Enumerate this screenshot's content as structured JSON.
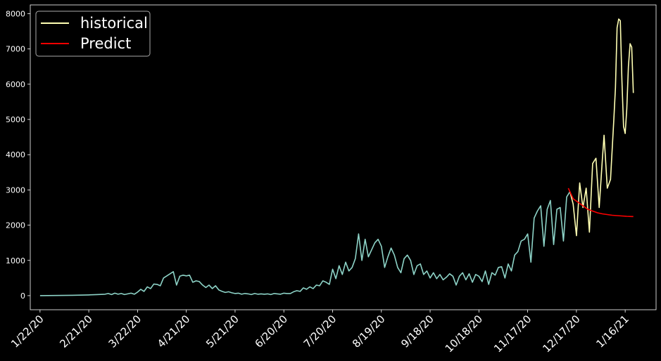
{
  "chart_data": {
    "type": "line",
    "title": "",
    "xlabel": "",
    "ylabel": "",
    "x_tick_labels": [
      "1/22/20",
      "2/21/20",
      "3/22/20",
      "4/21/20",
      "5/21/20",
      "6/20/20",
      "7/20/20",
      "8/19/20",
      "9/18/20",
      "10/18/20",
      "11/17/20",
      "12/17/20",
      "1/16/21"
    ],
    "x_tick_days": [
      0,
      30,
      60,
      90,
      120,
      150,
      180,
      210,
      240,
      270,
      300,
      330,
      360
    ],
    "xlim": [
      -6,
      379
    ],
    "ylim": [
      -400,
      8250
    ],
    "y_ticks": [
      0,
      1000,
      2000,
      3000,
      4000,
      5000,
      6000,
      7000,
      8000
    ],
    "legend": {
      "position": "top-left"
    },
    "colors": {
      "background": "#000000",
      "axes": "#ffffff",
      "early_history": "#8dd3c7",
      "historical": "#ffffb3",
      "predict": "#ff0000"
    },
    "series": [
      {
        "name": "",
        "color": "#8dd3c7",
        "points": [
          [
            0,
            0
          ],
          [
            5,
            2
          ],
          [
            10,
            5
          ],
          [
            15,
            6
          ],
          [
            20,
            10
          ],
          [
            25,
            15
          ],
          [
            30,
            20
          ],
          [
            35,
            30
          ],
          [
            40,
            40
          ],
          [
            42,
            60
          ],
          [
            44,
            30
          ],
          [
            46,
            70
          ],
          [
            48,
            40
          ],
          [
            50,
            60
          ],
          [
            52,
            30
          ],
          [
            54,
            50
          ],
          [
            56,
            70
          ],
          [
            58,
            40
          ],
          [
            60,
            100
          ],
          [
            62,
            180
          ],
          [
            64,
            120
          ],
          [
            66,
            250
          ],
          [
            68,
            200
          ],
          [
            70,
            330
          ],
          [
            72,
            320
          ],
          [
            74,
            280
          ],
          [
            76,
            500
          ],
          [
            78,
            560
          ],
          [
            80,
            620
          ],
          [
            82,
            680
          ],
          [
            84,
            300
          ],
          [
            86,
            550
          ],
          [
            88,
            580
          ],
          [
            90,
            560
          ],
          [
            92,
            580
          ],
          [
            94,
            380
          ],
          [
            96,
            420
          ],
          [
            98,
            400
          ],
          [
            100,
            300
          ],
          [
            102,
            230
          ],
          [
            104,
            300
          ],
          [
            106,
            200
          ],
          [
            108,
            280
          ],
          [
            110,
            160
          ],
          [
            112,
            120
          ],
          [
            114,
            90
          ],
          [
            116,
            110
          ],
          [
            118,
            80
          ],
          [
            120,
            60
          ],
          [
            122,
            70
          ],
          [
            124,
            40
          ],
          [
            126,
            60
          ],
          [
            128,
            50
          ],
          [
            130,
            30
          ],
          [
            132,
            60
          ],
          [
            134,
            40
          ],
          [
            136,
            50
          ],
          [
            138,
            40
          ],
          [
            140,
            50
          ],
          [
            142,
            30
          ],
          [
            144,
            60
          ],
          [
            146,
            50
          ],
          [
            148,
            40
          ],
          [
            150,
            70
          ],
          [
            152,
            60
          ],
          [
            154,
            60
          ],
          [
            156,
            110
          ],
          [
            158,
            140
          ],
          [
            160,
            120
          ],
          [
            162,
            220
          ],
          [
            164,
            180
          ],
          [
            166,
            250
          ],
          [
            168,
            200
          ],
          [
            170,
            300
          ],
          [
            172,
            280
          ],
          [
            174,
            420
          ],
          [
            176,
            380
          ],
          [
            178,
            320
          ],
          [
            180,
            750
          ],
          [
            182,
            480
          ],
          [
            184,
            850
          ],
          [
            186,
            600
          ],
          [
            188,
            950
          ],
          [
            190,
            700
          ],
          [
            192,
            800
          ],
          [
            194,
            1050
          ],
          [
            196,
            1750
          ],
          [
            198,
            1000
          ],
          [
            200,
            1600
          ],
          [
            202,
            1100
          ],
          [
            204,
            1300
          ],
          [
            206,
            1500
          ],
          [
            208,
            1600
          ],
          [
            210,
            1400
          ],
          [
            212,
            800
          ],
          [
            214,
            1100
          ],
          [
            216,
            1350
          ],
          [
            218,
            1150
          ],
          [
            220,
            800
          ],
          [
            222,
            650
          ],
          [
            224,
            1050
          ],
          [
            226,
            1150
          ],
          [
            228,
            1000
          ],
          [
            230,
            600
          ],
          [
            232,
            850
          ],
          [
            234,
            900
          ],
          [
            236,
            600
          ],
          [
            238,
            700
          ],
          [
            240,
            500
          ],
          [
            242,
            650
          ],
          [
            244,
            480
          ],
          [
            246,
            600
          ],
          [
            248,
            450
          ],
          [
            250,
            520
          ],
          [
            252,
            620
          ],
          [
            254,
            550
          ],
          [
            256,
            300
          ],
          [
            258,
            550
          ],
          [
            260,
            650
          ],
          [
            262,
            450
          ],
          [
            264,
            620
          ],
          [
            266,
            380
          ],
          [
            268,
            600
          ],
          [
            270,
            550
          ],
          [
            272,
            400
          ],
          [
            274,
            700
          ],
          [
            276,
            320
          ],
          [
            278,
            650
          ],
          [
            280,
            580
          ],
          [
            282,
            800
          ],
          [
            284,
            820
          ],
          [
            286,
            500
          ],
          [
            288,
            900
          ],
          [
            290,
            700
          ],
          [
            292,
            1150
          ],
          [
            294,
            1250
          ],
          [
            296,
            1550
          ],
          [
            298,
            1600
          ],
          [
            300,
            1750
          ],
          [
            302,
            950
          ],
          [
            304,
            2200
          ],
          [
            306,
            2400
          ],
          [
            308,
            2550
          ],
          [
            310,
            1400
          ],
          [
            312,
            2450
          ],
          [
            314,
            2700
          ],
          [
            316,
            1450
          ],
          [
            318,
            2450
          ],
          [
            320,
            2500
          ],
          [
            322,
            1550
          ],
          [
            324,
            2800
          ],
          [
            326,
            2950
          ]
        ]
      },
      {
        "name": "historical",
        "color": "#ffffb3",
        "points": [
          [
            326,
            2950
          ],
          [
            328,
            2600
          ],
          [
            330,
            1700
          ],
          [
            332,
            3200
          ],
          [
            334,
            2500
          ],
          [
            336,
            3050
          ],
          [
            338,
            1800
          ],
          [
            340,
            3750
          ],
          [
            342,
            3900
          ],
          [
            344,
            2500
          ],
          [
            346,
            3900
          ],
          [
            347,
            4550
          ],
          [
            349,
            3050
          ],
          [
            351,
            3300
          ],
          [
            353,
            5000
          ],
          [
            354,
            5900
          ],
          [
            355,
            7600
          ],
          [
            356,
            7850
          ],
          [
            357,
            7800
          ],
          [
            358,
            6100
          ],
          [
            359,
            4800
          ],
          [
            360,
            4600
          ],
          [
            361,
            5300
          ],
          [
            362,
            6500
          ],
          [
            363,
            7150
          ],
          [
            364,
            7050
          ],
          [
            365,
            5750
          ]
        ]
      },
      {
        "name": "Predict",
        "color": "#ff0000",
        "points": [
          [
            325,
            3050
          ],
          [
            328,
            2750
          ],
          [
            331,
            2650
          ],
          [
            334,
            2550
          ],
          [
            337,
            2450
          ],
          [
            340,
            2400
          ],
          [
            343,
            2350
          ],
          [
            346,
            2320
          ],
          [
            349,
            2300
          ],
          [
            352,
            2280
          ],
          [
            355,
            2270
          ],
          [
            358,
            2260
          ],
          [
            361,
            2250
          ],
          [
            364,
            2245
          ],
          [
            365,
            2245
          ]
        ]
      }
    ]
  }
}
